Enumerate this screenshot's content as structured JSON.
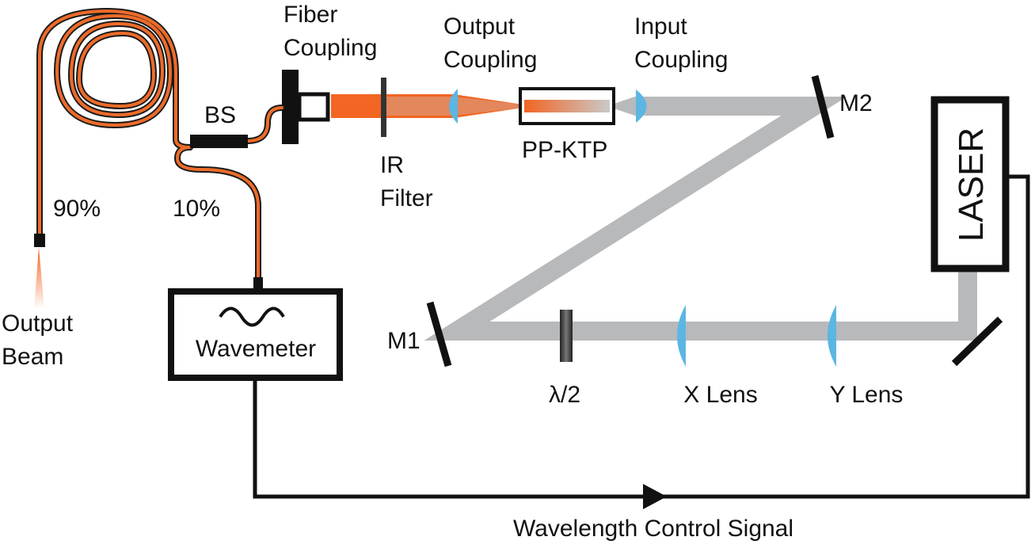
{
  "colors": {
    "beam_gray": "#b8b9bb",
    "fiber_orange": "#ec6b2a",
    "beam_orange": "#f26522",
    "lens_blue": "#5bb6e3",
    "outline": "#111111"
  },
  "labels": {
    "fiber_coupling": [
      "Fiber",
      "Coupling"
    ],
    "output_coupling": [
      "Output",
      "Coupling"
    ],
    "input_coupling": [
      "Input",
      "Coupling"
    ],
    "bs": "BS",
    "pp_ktp": "PP-KTP",
    "ir_filter": [
      "IR",
      "Filter"
    ],
    "m1": "M1",
    "m2": "M2",
    "laser": "LASER",
    "percent_90": "90%",
    "percent_10": "10%",
    "output_beam": [
      "Output",
      "Beam"
    ],
    "wavemeter": "Wavemeter",
    "half_wave": "λ/2",
    "x_lens": "X Lens",
    "y_lens": "Y Lens",
    "control_signal": "Wavelength Control Signal"
  },
  "icons": {
    "wavemeter_symbol": "sine-wave-icon",
    "signal_direction": "arrow-right-icon"
  }
}
